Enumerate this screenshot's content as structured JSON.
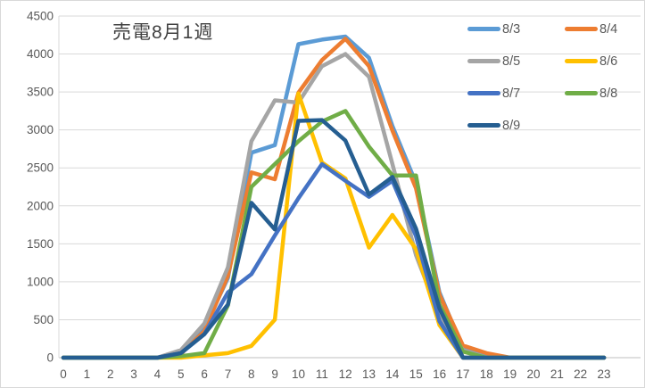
{
  "title": "売電8月1週",
  "chart_data": {
    "type": "line",
    "title": "売電8月1週",
    "xlabel": "",
    "ylabel": "",
    "x_tick_labels": [
      "0",
      "1",
      "2",
      "3",
      "4",
      "5",
      "6",
      "7",
      "8",
      "9",
      "10",
      "11",
      "12",
      "13",
      "14",
      "15",
      "16",
      "17",
      "18",
      "19",
      "20",
      "21",
      "22",
      "23"
    ],
    "y_tick_labels": [
      "0",
      "500",
      "1000",
      "1500",
      "2000",
      "2500",
      "3000",
      "3500",
      "4000",
      "4500"
    ],
    "ylim": [
      0,
      4500
    ],
    "ytick_interval": 500,
    "grid": true,
    "legend_position": "top-right",
    "x": [
      0,
      1,
      2,
      3,
      4,
      5,
      6,
      7,
      8,
      9,
      10,
      11,
      12,
      13,
      14,
      15,
      16,
      17,
      18,
      19,
      20,
      21,
      22,
      23
    ],
    "series": [
      {
        "name": "8/3",
        "color": "#5B9BD5",
        "values": [
          0,
          0,
          0,
          0,
          0,
          60,
          390,
          1050,
          2700,
          2800,
          4130,
          4190,
          4230,
          3950,
          3050,
          2300,
          860,
          120,
          30,
          0,
          0,
          0,
          0,
          0
        ]
      },
      {
        "name": "8/4",
        "color": "#ED7D31",
        "values": [
          0,
          0,
          0,
          0,
          0,
          50,
          350,
          1080,
          2440,
          2350,
          3490,
          3920,
          4200,
          3840,
          2990,
          2230,
          830,
          160,
          60,
          0,
          0,
          0,
          0,
          0
        ]
      },
      {
        "name": "8/5",
        "color": "#A5A5A5",
        "values": [
          0,
          0,
          0,
          0,
          0,
          100,
          450,
          1190,
          2850,
          3390,
          3360,
          3840,
          4000,
          3700,
          2550,
          1350,
          550,
          100,
          0,
          0,
          0,
          0,
          0,
          0
        ]
      },
      {
        "name": "8/6",
        "color": "#FFC000",
        "values": [
          0,
          0,
          0,
          0,
          0,
          0,
          30,
          60,
          155,
          500,
          3480,
          2570,
          2360,
          1450,
          1880,
          1430,
          430,
          0,
          0,
          0,
          0,
          0,
          0,
          0
        ]
      },
      {
        "name": "8/7",
        "color": "#4472C4",
        "values": [
          0,
          0,
          0,
          0,
          0,
          60,
          310,
          860,
          1100,
          1610,
          2100,
          2550,
          2330,
          2120,
          2330,
          1600,
          480,
          0,
          0,
          0,
          0,
          0,
          0,
          0
        ]
      },
      {
        "name": "8/8",
        "color": "#70AD47",
        "values": [
          0,
          0,
          0,
          0,
          0,
          20,
          60,
          690,
          2250,
          2550,
          2850,
          3110,
          3250,
          2780,
          2400,
          2400,
          700,
          80,
          0,
          0,
          0,
          0,
          0,
          0
        ]
      },
      {
        "name": "8/9",
        "color": "#255E91",
        "values": [
          0,
          0,
          0,
          0,
          0,
          60,
          310,
          700,
          2040,
          1690,
          3120,
          3130,
          2860,
          2150,
          2380,
          1700,
          650,
          0,
          0,
          0,
          0,
          0,
          0,
          0
        ]
      }
    ]
  },
  "legend": {
    "items": [
      "8/3",
      "8/4",
      "8/5",
      "8/6",
      "8/7",
      "8/8",
      "8/9"
    ]
  },
  "axis_colors": {
    "gridline": "#D9D9D9",
    "zero_axis": "#BFBFBF",
    "tick_text": "#595959",
    "title_text": "#404040"
  }
}
